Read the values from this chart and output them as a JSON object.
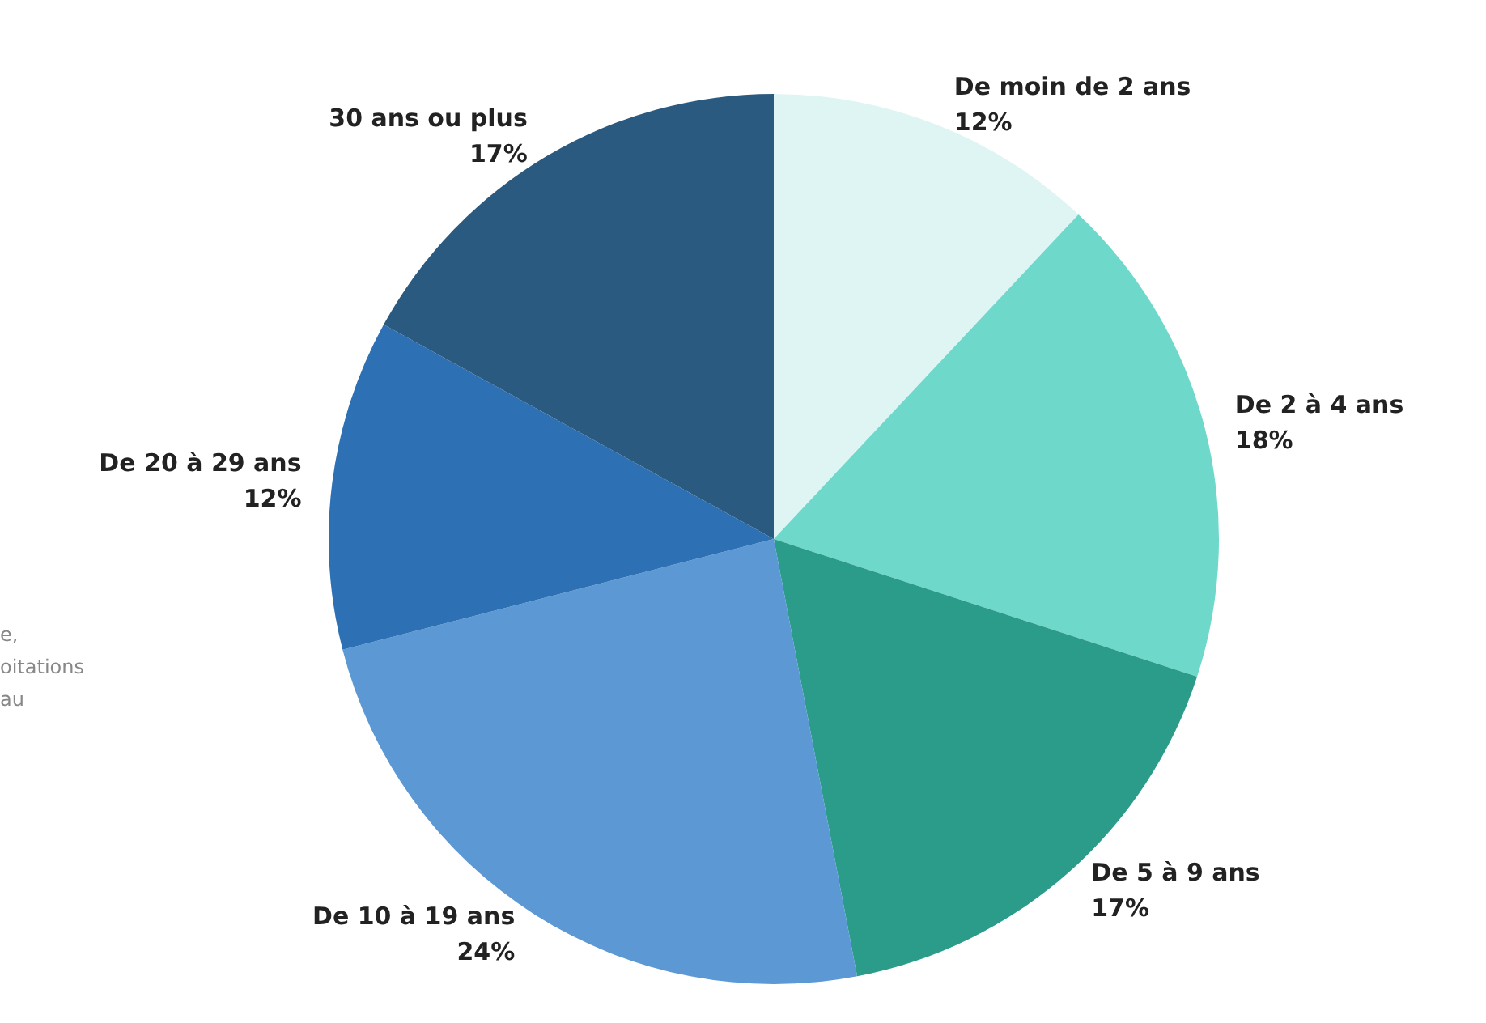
{
  "chart_data": {
    "type": "pie",
    "categories": [
      "De moin de 2 ans",
      "De 2 à 4 ans",
      "De 5 à 9 ans",
      "De 10 à 19 ans",
      "De 20 à 29 ans",
      "30 ans ou plus"
    ],
    "values": [
      12,
      18,
      17,
      24,
      12,
      17
    ],
    "value_labels": [
      "12%",
      "18%",
      "17%",
      "24%",
      "12%",
      "17%"
    ],
    "colors": [
      "#dff5f3",
      "#6ed8ca",
      "#2b9c8a",
      "#5b98d4",
      "#2d71b4",
      "#2b5a80"
    ],
    "annotations": [
      "e,",
      "oitations",
      "au"
    ],
    "legend": false
  }
}
